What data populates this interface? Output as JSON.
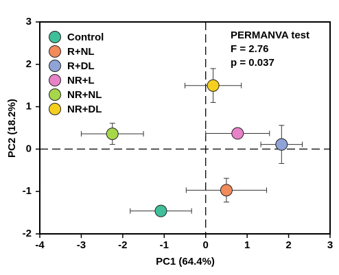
{
  "chart_data": {
    "type": "scatter",
    "xlabel": "PC1 (64.4%)",
    "ylabel": "PC2 (18.2%)",
    "annotations": [
      "PERMANVA test",
      "F = 2.76",
      "p = 0.037"
    ],
    "xlim": [
      -4,
      3
    ],
    "xticks": [
      -4,
      -3,
      -2,
      -1,
      0,
      1,
      2,
      3
    ],
    "ylim": [
      -2,
      3
    ],
    "yticks": [
      -2,
      -1,
      0,
      1,
      2,
      3
    ],
    "legend": "upper left",
    "series": [
      {
        "name": "Control",
        "color": "#3fbf9a",
        "x": [
          -1.08
        ],
        "y": [
          -1.46
        ],
        "xerr": [
          0.74
        ],
        "yerr": [
          0
        ]
      },
      {
        "name": "R+NL",
        "color": "#f28a5a",
        "x": [
          0.5
        ],
        "y": [
          -0.97
        ],
        "xerr": [
          0.97
        ],
        "yerr": [
          0.28
        ]
      },
      {
        "name": "R+DL",
        "color": "#8fa3d6",
        "x": [
          1.83
        ],
        "y": [
          0.11
        ],
        "xerr": [
          0.5
        ],
        "yerr": [
          0.45
        ]
      },
      {
        "name": "NR+L",
        "color": "#e882c8",
        "x": [
          0.77
        ],
        "y": [
          0.37
        ],
        "xerr": [
          0.77
        ],
        "yerr": [
          0
        ]
      },
      {
        "name": "NR+NL",
        "color": "#a6d64a",
        "x": [
          -2.25
        ],
        "y": [
          0.36
        ],
        "xerr": [
          0.75
        ],
        "yerr": [
          0.25
        ]
      },
      {
        "name": "NR+DL",
        "color": "#f5cf1f",
        "x": [
          0.18
        ],
        "y": [
          1.5
        ],
        "xerr": [
          0.68
        ],
        "yerr": [
          0.4
        ]
      }
    ]
  }
}
